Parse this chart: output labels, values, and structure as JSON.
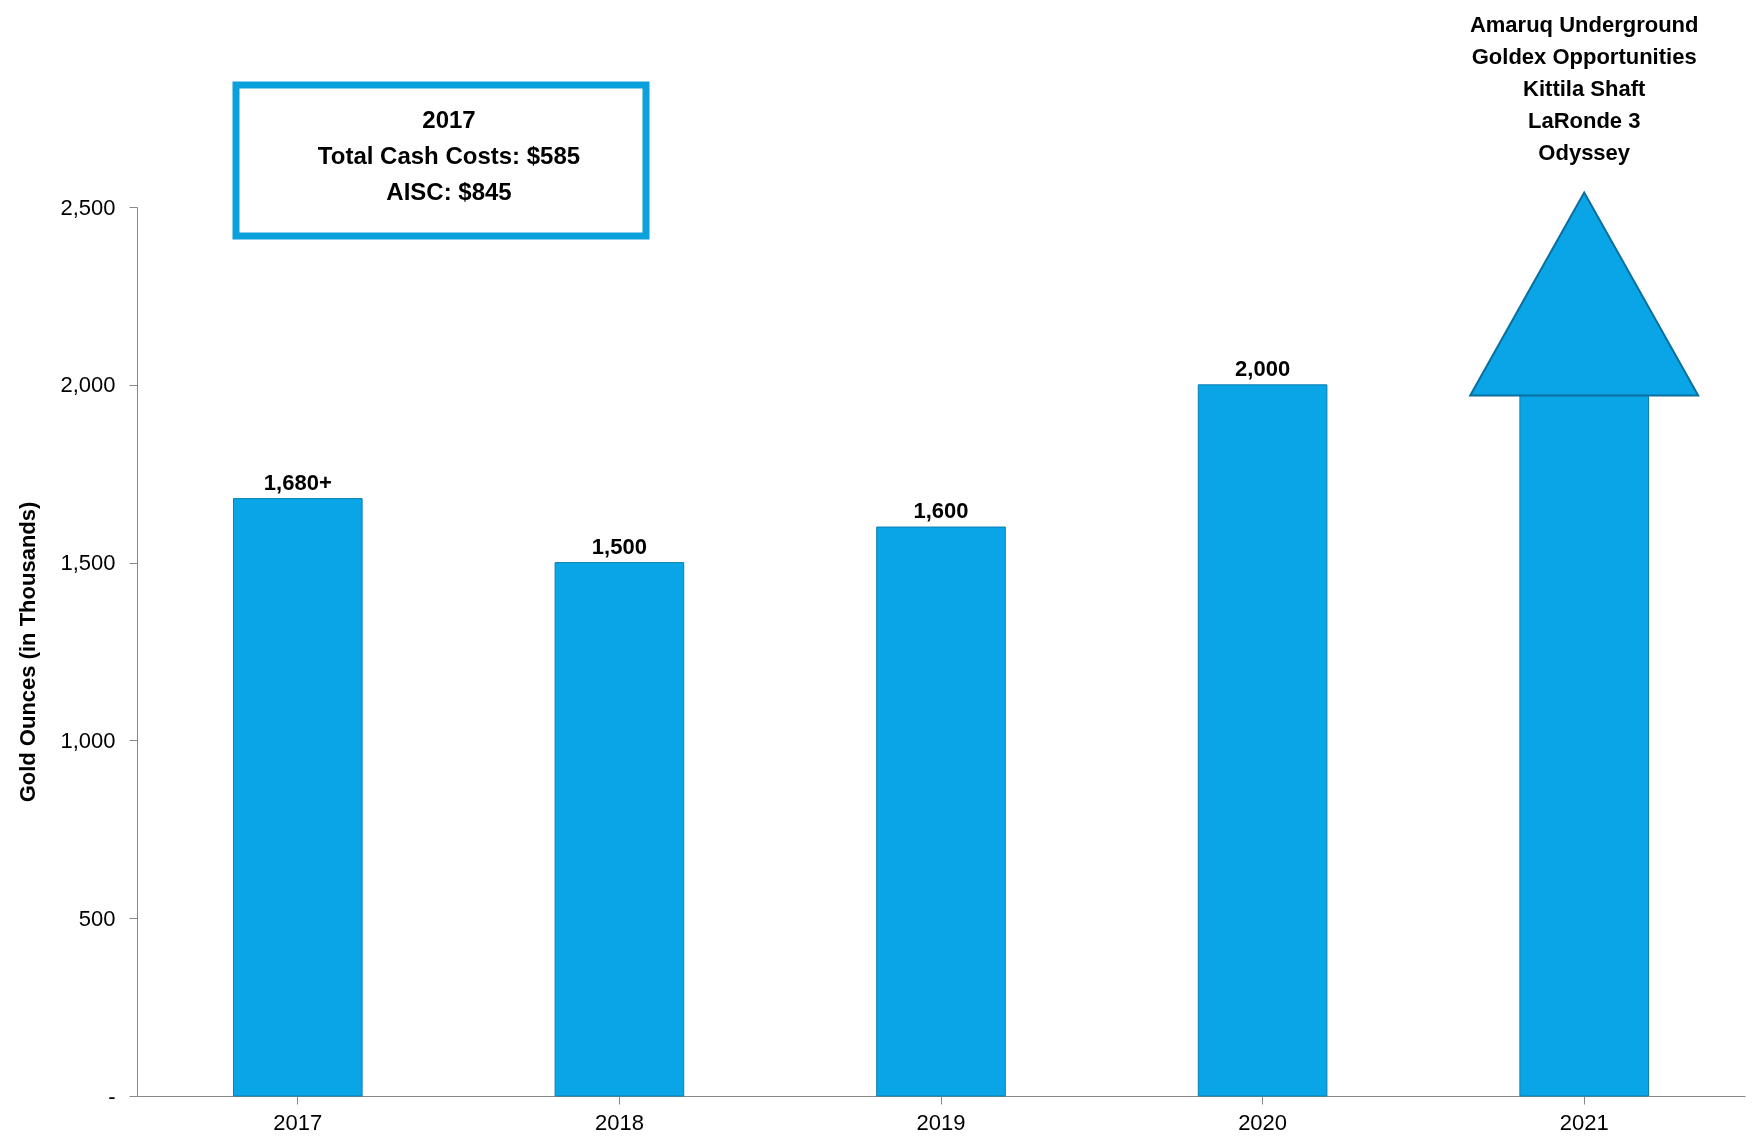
{
  "chart_data": {
    "type": "bar",
    "ylabel": "Gold Ounces (in Thousands)",
    "categories": [
      "2017",
      "2018",
      "2019",
      "2020",
      "2021"
    ],
    "values": [
      1680,
      1500,
      1600,
      2000,
      1970
    ],
    "value_labels": [
      "1,680+",
      "1,500",
      "1,600",
      "2,000",
      null
    ],
    "color": "#0aa5e6",
    "ylim": [
      0,
      2500
    ],
    "yticks": [
      {
        "value": 0,
        "label": "-"
      },
      500,
      {
        "value": 1000,
        "label": "1,000"
      },
      {
        "value": 1500,
        "label": "1,500"
      },
      {
        "value": 2000,
        "label": "2,000"
      },
      {
        "value": 2500,
        "label": "2,500"
      }
    ],
    "grid": false,
    "annotations": [
      "2017\nTotal Cash Costs: $585\nAISC: $845",
      "Amaruq Underground\nGoldex Opportunities\nKittila Shaft\nLaRonde 3\nOdyssey"
    ]
  }
}
